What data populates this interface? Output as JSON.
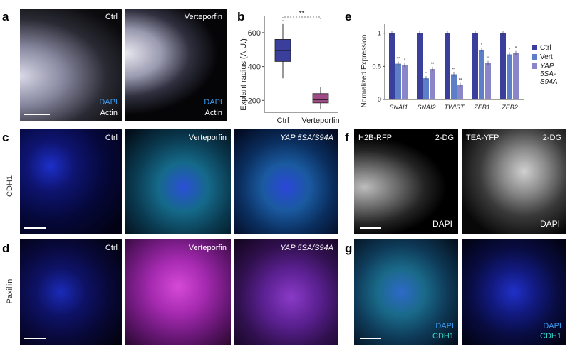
{
  "panel_labels": {
    "a": "a",
    "b": "b",
    "c": "c",
    "d": "d",
    "e": "e",
    "f": "f",
    "g": "g"
  },
  "panel_a": {
    "ctrl_label": "Ctrl",
    "vert_label": "Verteporfin",
    "dapi": "DAPI",
    "actin": "Actin"
  },
  "panel_c": {
    "row_label": "CDH1",
    "ctrl": "Ctrl",
    "vert": "Verteporfin",
    "yap": "YAP 5SA/S94A"
  },
  "panel_d": {
    "row_label": "Paxillin",
    "ctrl": "Ctrl",
    "vert": "Verteporfin",
    "yap": "YAP 5SA/S94A"
  },
  "panel_f": {
    "left_top": "H2B-RFP",
    "left_right": "2-DG",
    "right_top": "TEA-YFP",
    "right_right": "2-DG",
    "dapi": "DAPI"
  },
  "panel_g": {
    "dapi": "DAPI",
    "cdh1": "CDH1"
  },
  "colors": {
    "dapi": "#3a9cf0",
    "cdh1": "#34d6c6",
    "paxillin": "#d63fd6",
    "ctrl_box": "#3b3f9c",
    "vert_box": "#a04a86"
  },
  "chart_data": [
    {
      "type": "box",
      "ylabel": "Explant radius (A.U.)",
      "categories": [
        "Ctrl",
        "Verteporfin"
      ],
      "yticks": [
        200,
        400,
        600
      ],
      "ylim": [
        130,
        700
      ],
      "significance": "**",
      "boxes": [
        {
          "name": "Ctrl",
          "min": 330,
          "q1": 430,
          "median": 495,
          "q3": 560,
          "max": 650,
          "color": "#3b3f9c"
        },
        {
          "name": "Verteporfin",
          "min": 150,
          "q1": 185,
          "median": 205,
          "q3": 240,
          "max": 280,
          "color": "#a04a86"
        }
      ]
    },
    {
      "type": "bar",
      "ylabel": "Normalized Expression",
      "categories": [
        "SNAI1",
        "SNAI2",
        "TWIST",
        "ZEB1",
        "ZEB2"
      ],
      "yticks": [
        "0",
        "0.5",
        "1"
      ],
      "ylim": [
        0,
        1.05
      ],
      "legend_position": "right",
      "legend_labels": [
        "Ctrl",
        "Vert",
        "YAP 5SA-S94A"
      ],
      "series": [
        {
          "name": "Ctrl",
          "color": "#3b3f9c",
          "values": [
            1,
            1,
            1,
            1,
            1
          ],
          "stars": [
            "",
            "",
            "",
            "",
            ""
          ]
        },
        {
          "name": "Vert",
          "color": "#5d7fc7",
          "values": [
            0.54,
            0.32,
            0.38,
            0.75,
            0.68
          ],
          "stars": [
            "**",
            "**",
            "**",
            "*",
            "*"
          ]
        },
        {
          "name": "YAP 5SA-S94A",
          "color": "#8a86c9",
          "values": [
            0.52,
            0.46,
            0.22,
            0.55,
            0.7
          ],
          "stars": [
            "*",
            "**",
            "**",
            "**",
            "*"
          ]
        }
      ]
    }
  ]
}
